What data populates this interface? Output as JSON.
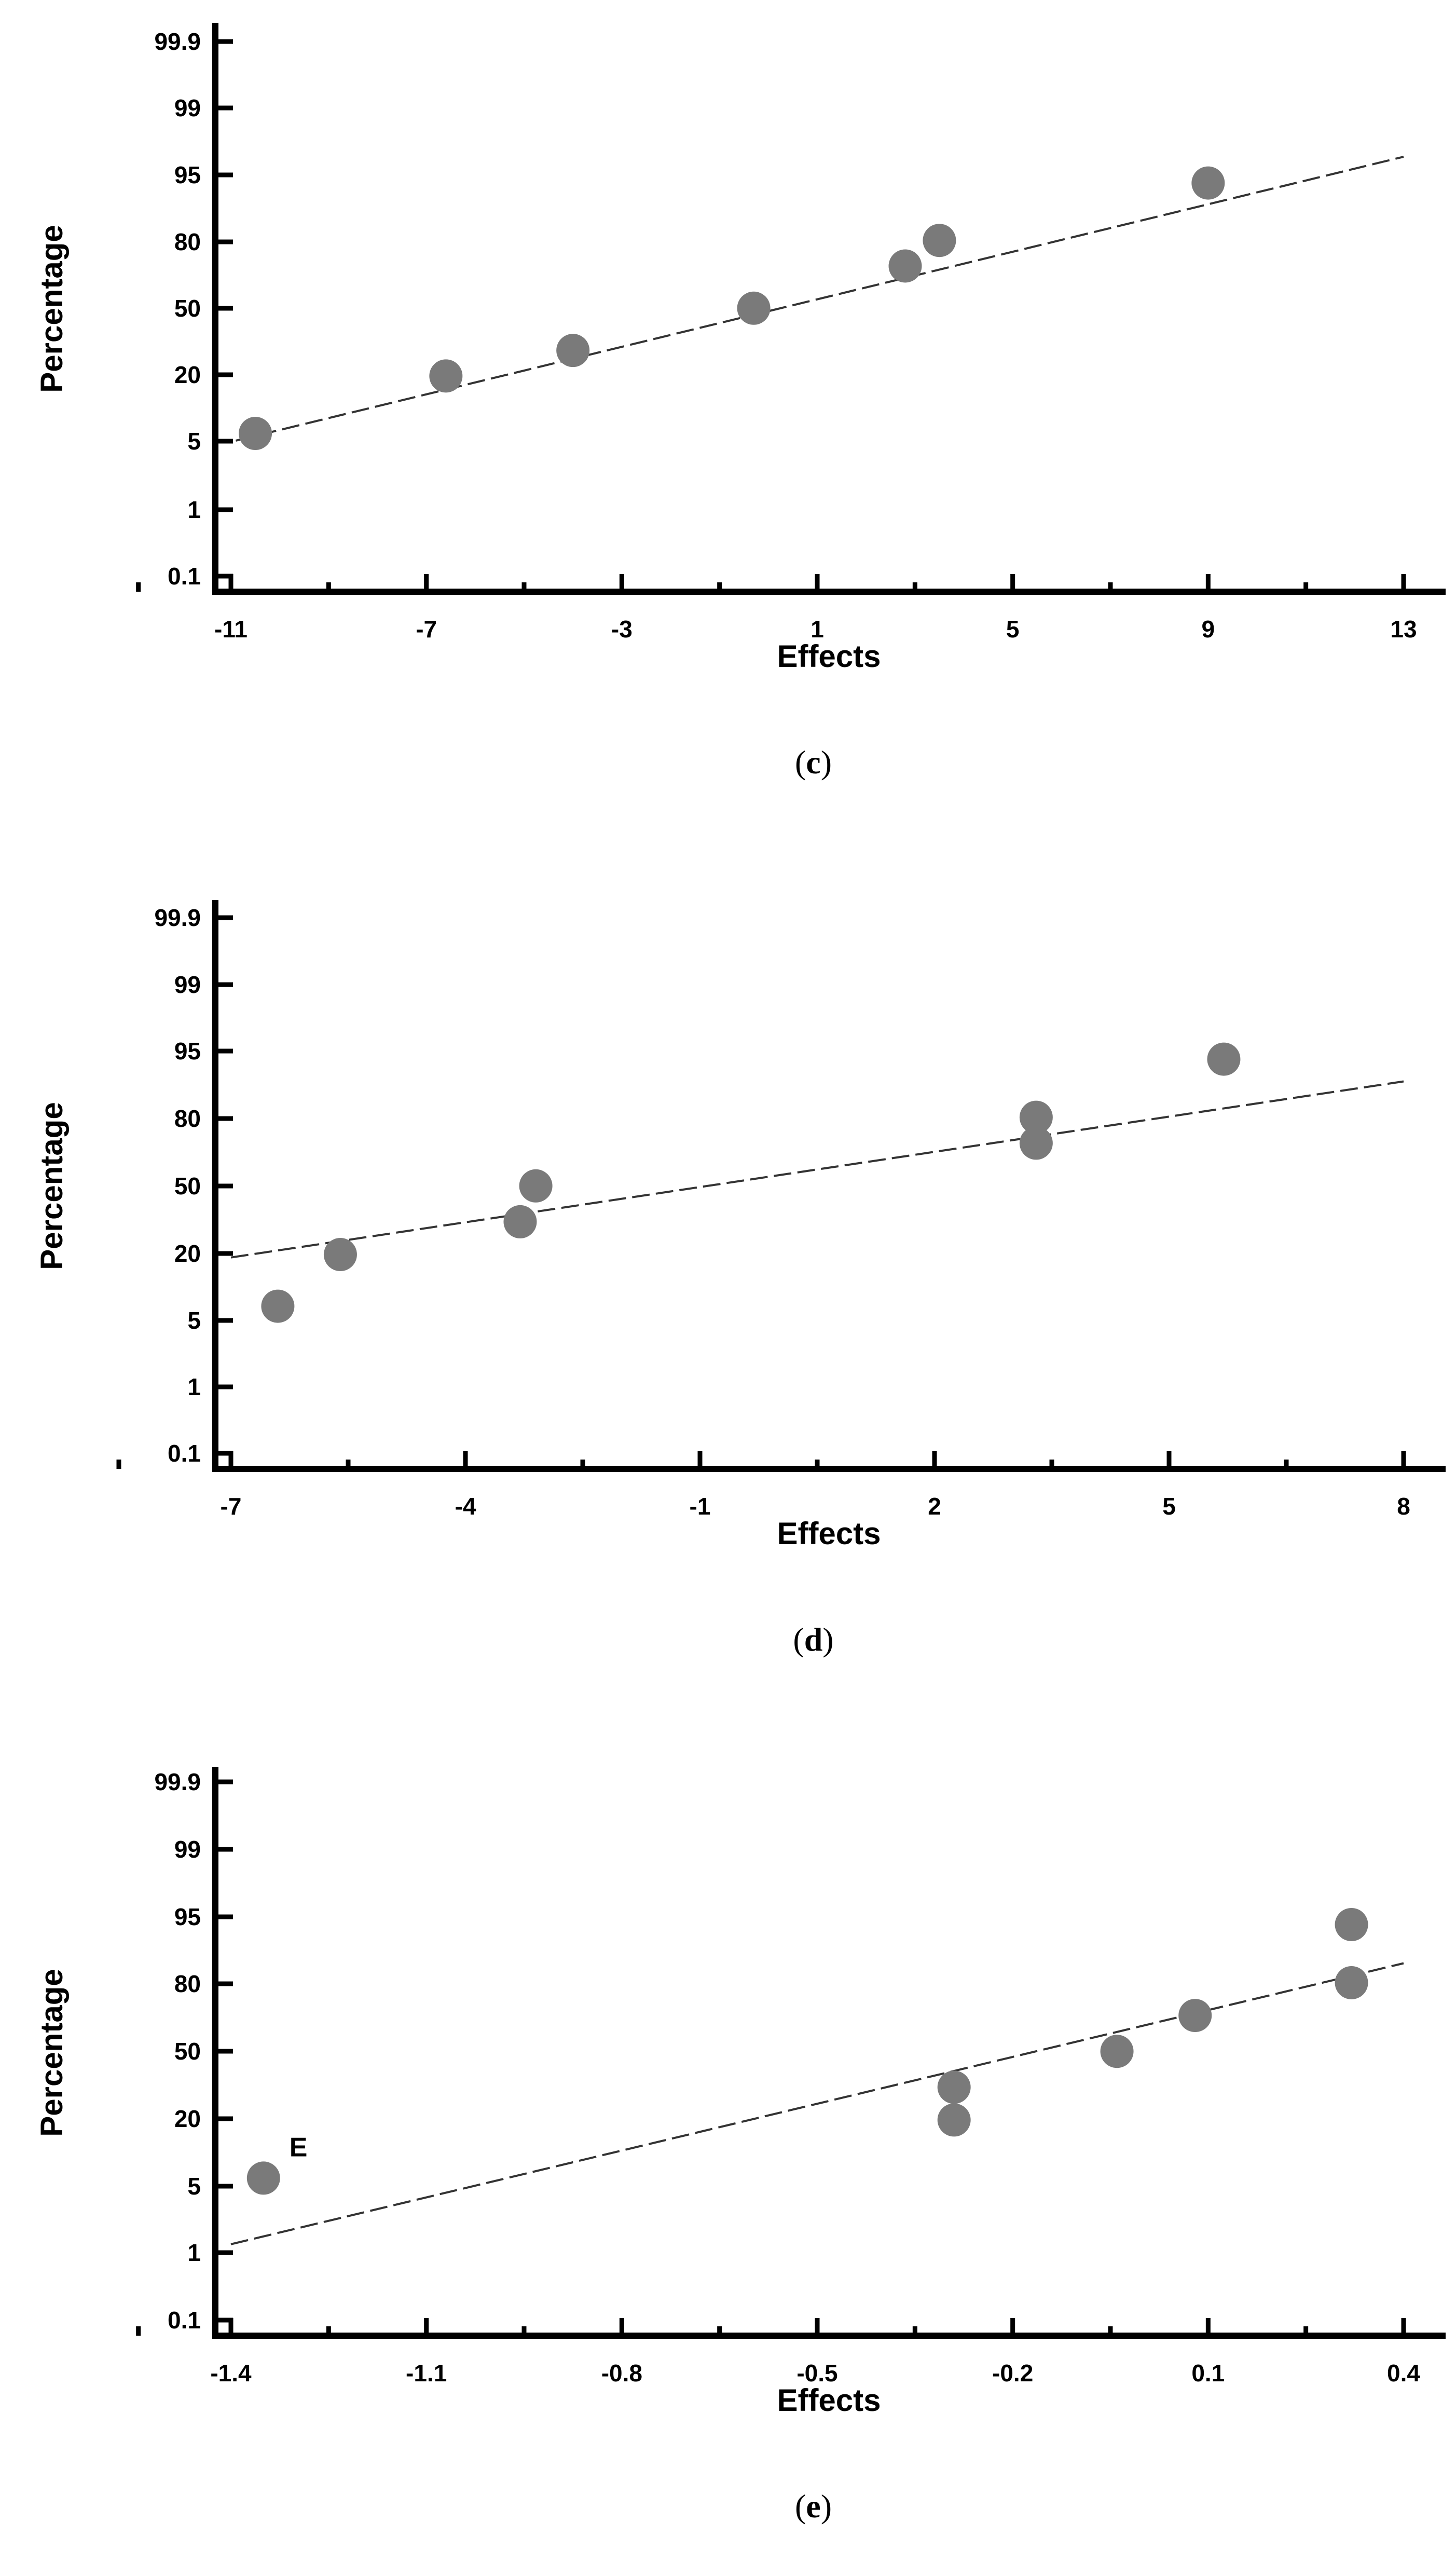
{
  "chart_data": [
    {
      "type": "scatter",
      "caption_letter": "c",
      "xlabel": "Effects",
      "ylabel": "Percentage",
      "x_ticks": [
        -11,
        -7,
        -3,
        1,
        5,
        9,
        13
      ],
      "xlim": [
        -11.6,
        13.6
      ],
      "y_ticks": [
        "0.1",
        "1",
        "5",
        "20",
        "50",
        "80",
        "95",
        "99",
        "99.9"
      ],
      "points": [
        {
          "x": -10.5,
          "y": 6
        },
        {
          "x": -6.6,
          "y": 20
        },
        {
          "x": -4.0,
          "y": 30
        },
        {
          "x": -0.3,
          "y": 50
        },
        {
          "x": 2.8,
          "y": 70
        },
        {
          "x": 3.5,
          "y": 80
        },
        {
          "x": 9.0,
          "y": 94
        }
      ],
      "fit_line": {
        "x": [
          -10.9,
          13.0
        ],
        "y": [
          5,
          97
        ]
      }
    },
    {
      "type": "scatter",
      "caption_letter": "d",
      "xlabel": "Effects",
      "ylabel": "Percentage",
      "x_ticks": [
        -7,
        -4,
        -1,
        2,
        5,
        8
      ],
      "xlim": [
        -7.4,
        8.4
      ],
      "y_ticks": [
        "0.1",
        "1",
        "5",
        "20",
        "50",
        "80",
        "95",
        "99",
        "99.9"
      ],
      "points": [
        {
          "x": -6.4,
          "y": 7
        },
        {
          "x": -5.6,
          "y": 20
        },
        {
          "x": -3.3,
          "y": 33
        },
        {
          "x": -3.1,
          "y": 50
        },
        {
          "x": 3.3,
          "y": 70
        },
        {
          "x": 3.3,
          "y": 80
        },
        {
          "x": 5.7,
          "y": 94
        }
      ],
      "fit_line": {
        "x": [
          -7.0,
          8.0
        ],
        "y": [
          19,
          90
        ]
      }
    },
    {
      "type": "scatter",
      "caption_letter": "e",
      "xlabel": "Effects",
      "ylabel": "Percentage",
      "x_ticks": [
        "-1.4",
        "-1.1",
        "-0.8",
        "-0.5",
        "-0.2",
        "0.1",
        "0.4"
      ],
      "xlim": [
        -1.46,
        0.46
      ],
      "y_ticks": [
        "0.1",
        "1",
        "5",
        "20",
        "50",
        "80",
        "95",
        "99",
        "99.9"
      ],
      "points": [
        {
          "x": -1.35,
          "y": 6,
          "label": "E"
        },
        {
          "x": -0.29,
          "y": 20
        },
        {
          "x": -0.29,
          "y": 33
        },
        {
          "x": -0.04,
          "y": 50
        },
        {
          "x": 0.08,
          "y": 67
        },
        {
          "x": 0.32,
          "y": 80
        },
        {
          "x": 0.32,
          "y": 94
        }
      ],
      "fit_line": {
        "x": [
          -1.4,
          0.4
        ],
        "y": [
          0.9,
          86
        ]
      }
    }
  ]
}
